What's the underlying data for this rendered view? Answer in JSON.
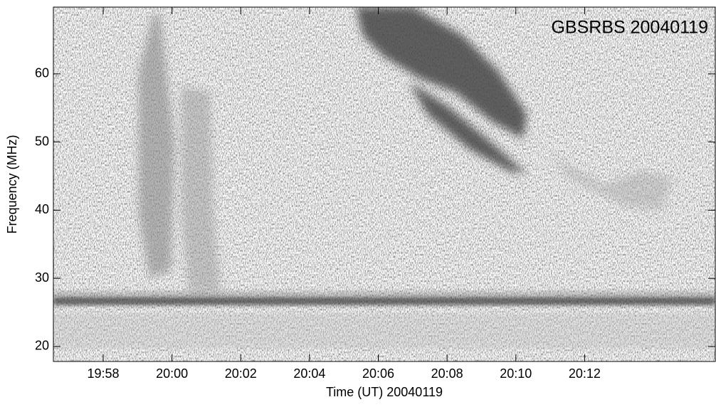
{
  "chart_data": {
    "type": "spectrogram",
    "label": "GBSRBS 20040119",
    "x_label": "Time (UT) 20040119",
    "y_label": "Frequency (MHz)",
    "xlim": [
      1196.55,
      1215.8
    ],
    "xticks": [
      {
        "value": 1198,
        "label": "19:58"
      },
      {
        "value": 1200,
        "label": "20:00"
      },
      {
        "value": 1202,
        "label": "20:02"
      },
      {
        "value": 1204,
        "label": "20:04"
      },
      {
        "value": 1206,
        "label": "20:06"
      },
      {
        "value": 1208,
        "label": "20:08"
      },
      {
        "value": 1210,
        "label": "20:10"
      },
      {
        "value": 1212,
        "label": "20:12"
      }
    ],
    "ylim": [
      17.8,
      69.8
    ],
    "yticks": [
      20,
      30,
      40,
      50,
      60
    ]
  }
}
